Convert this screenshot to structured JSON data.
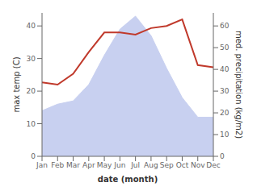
{
  "chart_data": {
    "type": "area",
    "x_label": "date (month)",
    "y_label": "max temp (C)",
    "y2_label": "med. precipitation (kg/m2)",
    "categories": [
      "Jan",
      "Feb",
      "Mar",
      "Apr",
      "May",
      "Jun",
      "Jul",
      "Aug",
      "Sep",
      "Oct",
      "Nov",
      "Dec"
    ],
    "series": [
      {
        "type": "area",
        "color": "#c8d0f0",
        "values": [
          14,
          16,
          17,
          22,
          31,
          39,
          43,
          37,
          27,
          18,
          12,
          12
        ]
      },
      {
        "type": "line",
        "axis": "y2",
        "color": "#c0392b",
        "values": [
          34,
          33,
          38,
          48,
          57,
          57,
          56,
          59,
          60,
          63,
          42,
          41
        ]
      }
    ],
    "ylim": [
      0,
      44
    ],
    "yticks": [
      0,
      10,
      20,
      30,
      40
    ],
    "y2lim": [
      0,
      66
    ],
    "y2ticks": [
      0,
      10,
      20,
      30,
      40,
      50,
      60
    ],
    "grid": false
  }
}
